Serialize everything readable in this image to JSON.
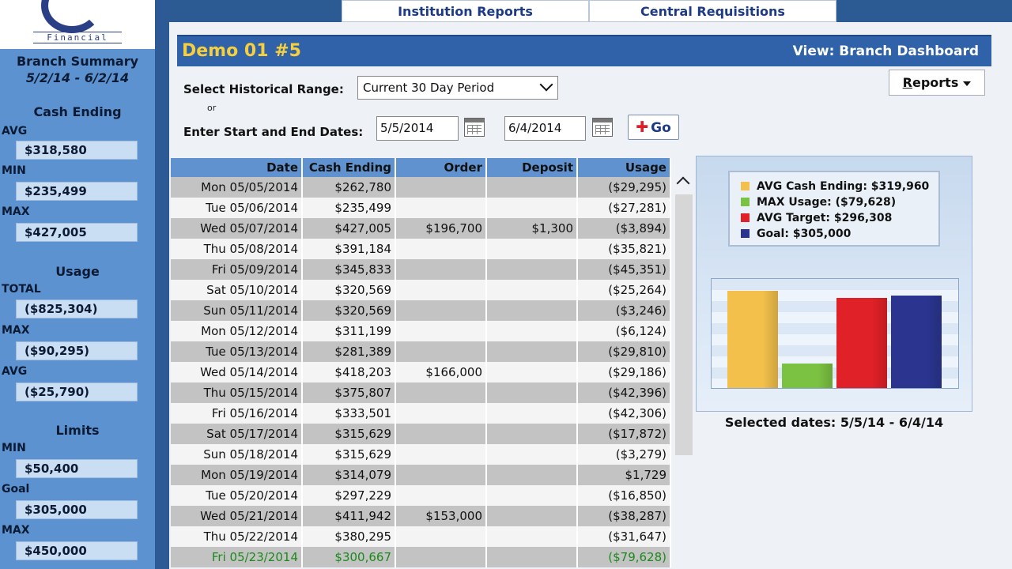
{
  "app": {
    "logo_text": "Financial"
  },
  "top_tabs": [
    {
      "label": "Institution Reports"
    },
    {
      "label": "Central Requisitions"
    }
  ],
  "sidebar": {
    "title": "Branch Summary",
    "date_range": "5/2/14 - 6/2/14",
    "sections": {
      "cash_ending": {
        "title": "Cash Ending",
        "avg_label": "AVG",
        "avg": "$318,580",
        "min_label": "MIN",
        "min": "$235,499",
        "max_label": "MAX",
        "max": "$427,005"
      },
      "usage": {
        "title": "Usage",
        "total_label": "TOTAL",
        "total": "($825,304)",
        "max_label": "MAX",
        "max": "($90,295)",
        "avg_label": "AVG",
        "avg": "($25,790)"
      },
      "limits": {
        "title": "Limits",
        "min_label": "MIN",
        "min": "$50,400",
        "goal_label": "Goal",
        "goal": "$305,000",
        "max_label": "MAX",
        "max": "$450,000"
      }
    }
  },
  "header": {
    "title": "Demo 01 #5",
    "view": "View: Branch Dashboard"
  },
  "controls": {
    "range_label": "Select Historical Range:",
    "range_value": "Current 30 Day Period",
    "or_label": "or",
    "dates_label": "Enter Start and End Dates:",
    "start_date": "5/5/2014",
    "end_date": "6/4/2014",
    "go_label": "Go",
    "reports_label_u": "R",
    "reports_label_rest": "eports"
  },
  "table": {
    "columns": [
      "Date",
      "Cash Ending",
      "Order",
      "Deposit",
      "Usage"
    ],
    "rows": [
      [
        "Mon 05/05/2014",
        "$262,780",
        "",
        "",
        "($29,295)"
      ],
      [
        "Tue 05/06/2014",
        "$235,499",
        "",
        "",
        "($27,281)"
      ],
      [
        "Wed 05/07/2014",
        "$427,005",
        "$196,700",
        "$1,300",
        "($3,894)"
      ],
      [
        "Thu 05/08/2014",
        "$391,184",
        "",
        "",
        "($35,821)"
      ],
      [
        "Fri 05/09/2014",
        "$345,833",
        "",
        "",
        "($45,351)"
      ],
      [
        "Sat 05/10/2014",
        "$320,569",
        "",
        "",
        "($25,264)"
      ],
      [
        "Sun 05/11/2014",
        "$320,569",
        "",
        "",
        "($3,246)"
      ],
      [
        "Mon 05/12/2014",
        "$311,199",
        "",
        "",
        "($6,124)"
      ],
      [
        "Tue 05/13/2014",
        "$281,389",
        "",
        "",
        "($29,810)"
      ],
      [
        "Wed 05/14/2014",
        "$418,203",
        "$166,000",
        "",
        "($29,186)"
      ],
      [
        "Thu 05/15/2014",
        "$375,807",
        "",
        "",
        "($42,396)"
      ],
      [
        "Fri 05/16/2014",
        "$333,501",
        "",
        "",
        "($42,306)"
      ],
      [
        "Sat 05/17/2014",
        "$315,629",
        "",
        "",
        "($17,872)"
      ],
      [
        "Sun 05/18/2014",
        "$315,629",
        "",
        "",
        "($3,279)"
      ],
      [
        "Mon 05/19/2014",
        "$314,079",
        "",
        "",
        "$1,729"
      ],
      [
        "Tue 05/20/2014",
        "$297,229",
        "",
        "",
        "($16,850)"
      ],
      [
        "Wed 05/21/2014",
        "$411,942",
        "$153,000",
        "",
        "($38,287)"
      ],
      [
        "Thu 05/22/2014",
        "$380,295",
        "",
        "",
        "($31,647)"
      ],
      [
        "Fri 05/23/2014",
        "$300,667",
        "",
        "",
        "($79,628)"
      ]
    ],
    "highlight_row": 18
  },
  "chart": {
    "legend": [
      {
        "label": "AVG Cash Ending: $319,960",
        "color": "#f2c04b"
      },
      {
        "label": "MAX Usage: ($79,628)",
        "color": "#7cc242"
      },
      {
        "label": "AVG Target: $296,308",
        "color": "#e02128"
      },
      {
        "label": "Goal: $305,000",
        "color": "#2b3590"
      }
    ],
    "selected_dates": "Selected dates: 5/5/14 - 6/4/14"
  },
  "chart_data": {
    "type": "bar",
    "categories": [
      "AVG Cash Ending",
      "MAX Usage",
      "AVG Target",
      "Goal"
    ],
    "values": [
      319960,
      79628,
      296308,
      305000
    ],
    "colors": [
      "#f2c04b",
      "#7cc242",
      "#e02128",
      "#2b3590"
    ],
    "ylim": [
      0,
      360000
    ],
    "grid": true,
    "legend_position": "top"
  }
}
